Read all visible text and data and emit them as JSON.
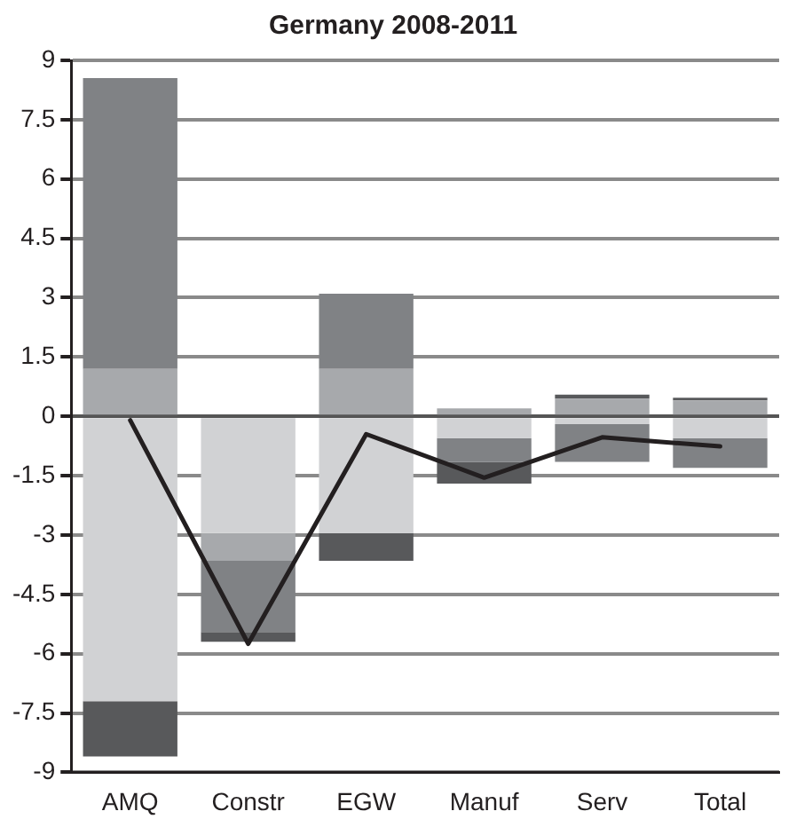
{
  "chart_data": {
    "type": "bar",
    "title": "Germany 2008-2011",
    "stacked": true,
    "categories": [
      "AMQ",
      "Constr",
      "EGW",
      "Manuf",
      "Serv",
      "Total"
    ],
    "series": [
      {
        "color": "#d1d2d4",
        "values": [
          -7.2,
          -2.95,
          -2.95,
          -0.55,
          -0.2,
          -0.55
        ]
      },
      {
        "color": "#a7a9ac",
        "values": [
          1.2,
          -0.7,
          1.2,
          0.2,
          0.45,
          0.4
        ]
      },
      {
        "color": "#808285",
        "values": [
          7.35,
          -1.8,
          1.9,
          -0.6,
          -0.95,
          -0.75
        ]
      },
      {
        "color": "#58595b",
        "values": [
          -1.4,
          -0.25,
          -0.7,
          -0.55,
          0.1,
          0.07
        ]
      },
      {
        "type": "line",
        "color": "#231f20",
        "values": [
          -0.1,
          -5.75,
          -0.45,
          -1.55,
          -0.53,
          -0.76
        ]
      }
    ],
    "ylim": [
      -9,
      9
    ],
    "yticks": [
      -9,
      -7.5,
      -6,
      -4.5,
      -3,
      -1.5,
      0,
      1.5,
      3,
      4.5,
      6,
      7.5,
      9
    ],
    "grid": "y",
    "legend": false,
    "marker": "none",
    "line_style": "solid"
  }
}
